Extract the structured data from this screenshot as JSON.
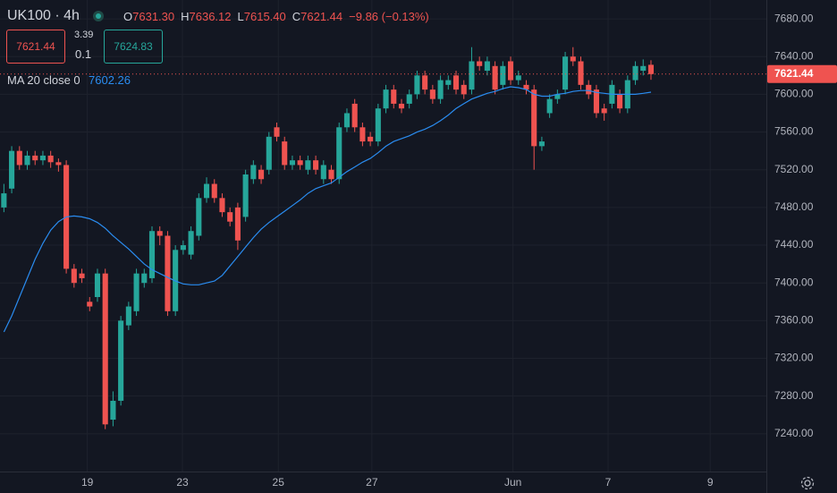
{
  "header": {
    "title": "UK100 · 4h",
    "ohlc": [
      {
        "key": "O",
        "value": "7631.30"
      },
      {
        "key": "H",
        "value": "7636.12"
      },
      {
        "key": "L",
        "value": "7615.40"
      },
      {
        "key": "C",
        "value": "7621.44"
      }
    ],
    "change": "−9.86 (−0.13%)",
    "sell": "7621.44",
    "spread_top": "3.39",
    "spread_bottom": "0.1",
    "buy": "7624.83",
    "indicator": "MA 20 close 0"
  },
  "chart_data": {
    "type": "candlestick",
    "up_color": "#26a69a",
    "down_color": "#ef5350",
    "open": [
      7480,
      7500,
      7540,
      7525,
      7535,
      7530,
      7535,
      7528,
      7525,
      7415,
      7410,
      7380,
      7385,
      7410,
      7255,
      7275,
      7355,
      7370,
      7400,
      7405,
      7455,
      7450,
      7370,
      7435,
      7430,
      7450,
      7490,
      7505,
      7490,
      7475,
      7480,
      7470,
      7510,
      7520,
      7520,
      7565,
      7550,
      7525,
      7530,
      7520,
      7530,
      7510,
      7520,
      7510,
      7565,
      7590,
      7565,
      7555,
      7550,
      7585,
      7605,
      7590,
      7590,
      7600,
      7620,
      7605,
      7595,
      7610,
      7620,
      7610,
      7605,
      7635,
      7625,
      7630,
      7610,
      7635,
      7615,
      7610,
      7605,
      7545,
      7580,
      7595,
      7605,
      7640,
      7635,
      7610,
      7605,
      7585,
      7590,
      7600,
      7585,
      7615,
      7625,
      7631.3
    ],
    "high": [
      7505,
      7545,
      7545,
      7540,
      7540,
      7540,
      7540,
      7532,
      7530,
      7420,
      7415,
      7385,
      7415,
      7415,
      7285,
      7365,
      7380,
      7415,
      7415,
      7460,
      7460,
      7455,
      7440,
      7445,
      7460,
      7495,
      7512,
      7510,
      7495,
      7480,
      7485,
      7520,
      7530,
      7525,
      7560,
      7570,
      7555,
      7535,
      7535,
      7535,
      7535,
      7530,
      7525,
      7570,
      7585,
      7595,
      7570,
      7560,
      7590,
      7610,
      7610,
      7595,
      7605,
      7625,
      7625,
      7610,
      7620,
      7620,
      7625,
      7615,
      7650,
      7640,
      7640,
      7635,
      7635,
      7640,
      7625,
      7615,
      7610,
      7555,
      7600,
      7605,
      7645,
      7650,
      7640,
      7615,
      7610,
      7590,
      7615,
      7605,
      7620,
      7635,
      7637,
      7636.12
    ],
    "low": [
      7475,
      7495,
      7520,
      7520,
      7525,
      7525,
      7522,
      7518,
      7410,
      7395,
      7400,
      7370,
      7380,
      7245,
      7248,
      7270,
      7350,
      7365,
      7395,
      7400,
      7440,
      7365,
      7365,
      7430,
      7425,
      7445,
      7485,
      7485,
      7470,
      7460,
      7435,
      7465,
      7505,
      7505,
      7515,
      7550,
      7520,
      7520,
      7520,
      7515,
      7515,
      7505,
      7505,
      7505,
      7560,
      7560,
      7545,
      7545,
      7545,
      7580,
      7585,
      7580,
      7585,
      7595,
      7600,
      7590,
      7590,
      7605,
      7600,
      7595,
      7600,
      7625,
      7620,
      7600,
      7605,
      7610,
      7610,
      7600,
      7520,
      7540,
      7575,
      7590,
      7600,
      7630,
      7605,
      7595,
      7575,
      7572,
      7585,
      7580,
      7580,
      7610,
      7620,
      7615.4
    ],
    "close": [
      7495,
      7540,
      7525,
      7535,
      7530,
      7535,
      7528,
      7525,
      7415,
      7400,
      7405,
      7375,
      7410,
      7250,
      7275,
      7360,
      7375,
      7410,
      7410,
      7455,
      7450,
      7370,
      7435,
      7440,
      7455,
      7490,
      7505,
      7490,
      7475,
      7465,
      7445,
      7515,
      7525,
      7510,
      7555,
      7555,
      7525,
      7530,
      7525,
      7530,
      7520,
      7525,
      7510,
      7565,
      7580,
      7565,
      7550,
      7550,
      7585,
      7605,
      7590,
      7585,
      7600,
      7620,
      7605,
      7595,
      7615,
      7615,
      7605,
      7600,
      7635,
      7630,
      7635,
      7605,
      7630,
      7615,
      7620,
      7605,
      7545,
      7550,
      7595,
      7600,
      7640,
      7635,
      7610,
      7600,
      7580,
      7580,
      7610,
      7585,
      7615,
      7630,
      7630,
      7621.44
    ],
    "ma": {
      "color": "#2a8cf0",
      "values": [
        7348,
        7365,
        7385,
        7405,
        7425,
        7442,
        7456,
        7465,
        7470,
        7471,
        7470,
        7468,
        7464,
        7458,
        7450,
        7443,
        7436,
        7428,
        7420,
        7414,
        7410,
        7406,
        7402,
        7399,
        7398,
        7398,
        7400,
        7402,
        7408,
        7418,
        7428,
        7438,
        7448,
        7457,
        7464,
        7470,
        7476,
        7482,
        7488,
        7495,
        7500,
        7503,
        7506,
        7512,
        7518,
        7523,
        7528,
        7532,
        7538,
        7545,
        7550,
        7553,
        7556,
        7560,
        7563,
        7567,
        7572,
        7578,
        7585,
        7590,
        7595,
        7598,
        7601,
        7603,
        7606,
        7608,
        7607,
        7605,
        7600,
        7598,
        7598,
        7600,
        7601,
        7603,
        7604,
        7604,
        7602,
        7601,
        7600,
        7600,
        7600,
        7600,
        7601,
        7602.26
      ]
    },
    "xlim": [
      -0.5,
      97.8
    ],
    "xticks": [
      {
        "value": 10.7,
        "label": "19"
      },
      {
        "value": 22.9,
        "label": "23"
      },
      {
        "value": 35.2,
        "label": "25"
      },
      {
        "value": 47.2,
        "label": "27"
      },
      {
        "value": 65.3,
        "label": "Jun"
      },
      {
        "value": 77.5,
        "label": "7"
      },
      {
        "value": 90.6,
        "label": "9"
      }
    ],
    "ylim": [
      7200,
      7700
    ],
    "yticks": [
      {
        "value": 7240,
        "label": "7240.00"
      },
      {
        "value": 7280,
        "label": "7280.00"
      },
      {
        "value": 7320,
        "label": "7320.00"
      },
      {
        "value": 7360,
        "label": "7360.00"
      },
      {
        "value": 7400,
        "label": "7400.00"
      },
      {
        "value": 7440,
        "label": "7440.00"
      },
      {
        "value": 7480,
        "label": "7480.00"
      },
      {
        "value": 7520,
        "label": "7520.00"
      },
      {
        "value": 7560,
        "label": "7560.00"
      },
      {
        "value": 7600,
        "label": "7600.00"
      },
      {
        "value": 7640,
        "label": "7640.00"
      },
      {
        "value": 7680,
        "label": "7680.00"
      }
    ],
    "grid": true
  }
}
